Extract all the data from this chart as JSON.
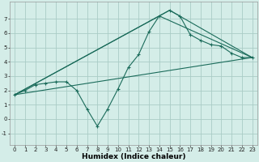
{
  "xlabel": "Humidex (Indice chaleur)",
  "background_color": "#d4ede8",
  "grid_color": "#aaccc6",
  "line_color": "#1a6b5a",
  "xlim": [
    -0.5,
    23.5
  ],
  "ylim": [
    -1.8,
    8.2
  ],
  "yticks": [
    -1,
    0,
    1,
    2,
    3,
    4,
    5,
    6,
    7
  ],
  "xticks": [
    0,
    1,
    2,
    3,
    4,
    5,
    6,
    7,
    8,
    9,
    10,
    11,
    12,
    13,
    14,
    15,
    16,
    17,
    18,
    19,
    20,
    21,
    22,
    23
  ],
  "series1_x": [
    0,
    1,
    2,
    3,
    4,
    5,
    6,
    7,
    8,
    9,
    10,
    11,
    12,
    13,
    14,
    15,
    16,
    17,
    18,
    19,
    20,
    21,
    22,
    23
  ],
  "series1_y": [
    1.7,
    2.0,
    2.4,
    2.5,
    2.6,
    2.6,
    2.0,
    0.7,
    -0.5,
    0.7,
    2.1,
    3.6,
    4.5,
    6.1,
    7.2,
    7.6,
    7.2,
    5.9,
    5.5,
    5.2,
    5.1,
    4.6,
    4.3,
    4.3
  ],
  "series2_x": [
    0,
    23
  ],
  "series2_y": [
    1.7,
    4.3
  ],
  "series3_x": [
    0,
    14,
    23
  ],
  "series3_y": [
    1.7,
    7.2,
    4.3
  ],
  "series4_x": [
    0,
    15,
    23
  ],
  "series4_y": [
    1.7,
    7.6,
    4.3
  ],
  "tick_fontsize": 5.0,
  "xlabel_fontsize": 6.5
}
